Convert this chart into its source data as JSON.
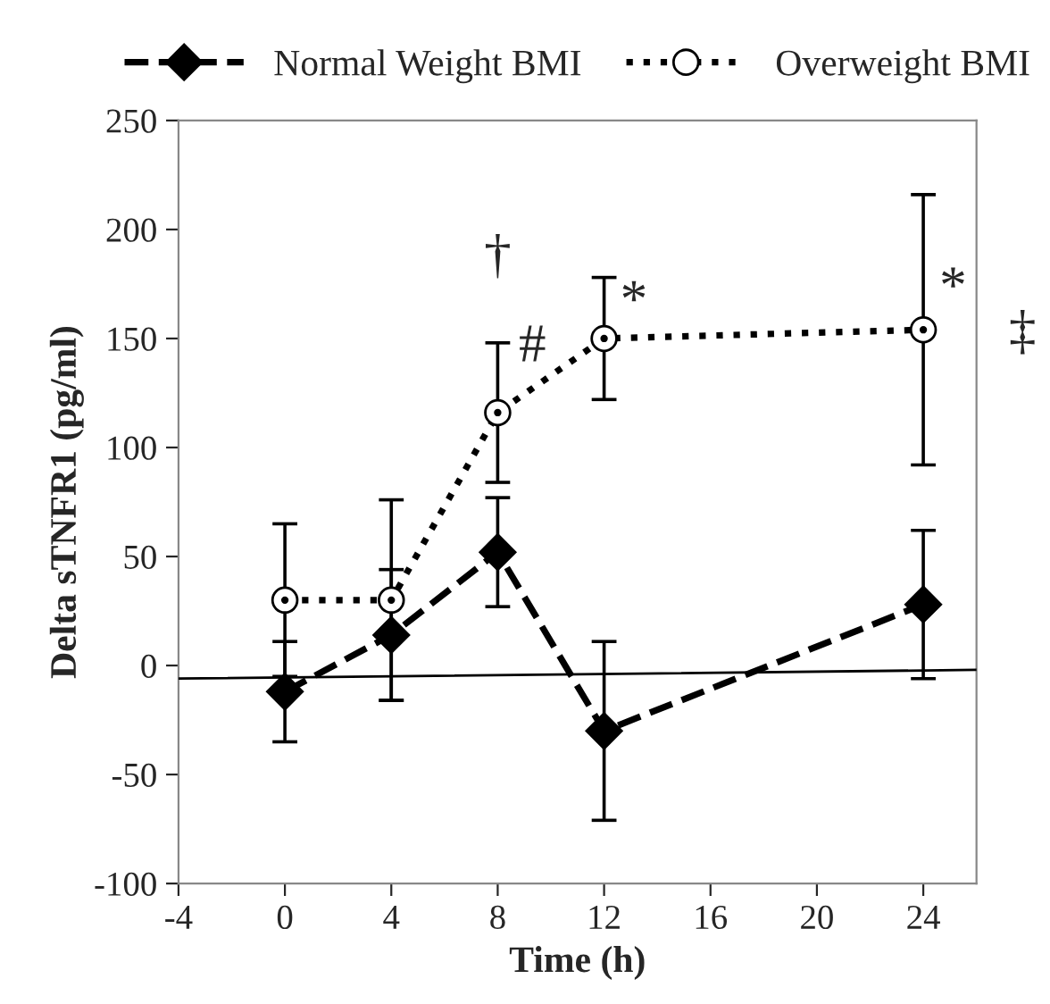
{
  "chart_data": {
    "type": "line",
    "xlabel": "Time (h)",
    "ylabel": "Delta sTNFR1 (pg/ml)",
    "x": [
      0,
      4,
      8,
      12,
      24
    ],
    "series": [
      {
        "name": "Normal Weight BMI",
        "color": "#000000",
        "marker": "diamond",
        "line_style": "dashed",
        "values": [
          -12,
          14,
          52,
          -30,
          28
        ],
        "errors": [
          23,
          30,
          25,
          41,
          34
        ]
      },
      {
        "name": "Overweight BMI",
        "color": "#000000",
        "marker": "circle",
        "line_style": "dotted",
        "values": [
          30,
          30,
          116,
          150,
          154
        ],
        "errors": [
          35,
          46,
          32,
          28,
          62
        ]
      },
      {
        "type": "line",
        "color": "#000000",
        "line_style": "solid",
        "marker": "none",
        "x": [
          -4,
          26
        ],
        "values": [
          -6,
          -2
        ]
      }
    ],
    "xlim": [
      -4,
      26
    ],
    "xticks": [
      -4,
      0,
      4,
      8,
      12,
      16,
      20,
      24
    ],
    "ylim": [
      -100,
      250
    ],
    "yticks": [
      -100,
      -50,
      0,
      50,
      100,
      150,
      200,
      250
    ],
    "grid": false,
    "legend": "top",
    "annotations": [
      "†",
      "#",
      "*",
      "*",
      "‡"
    ]
  }
}
